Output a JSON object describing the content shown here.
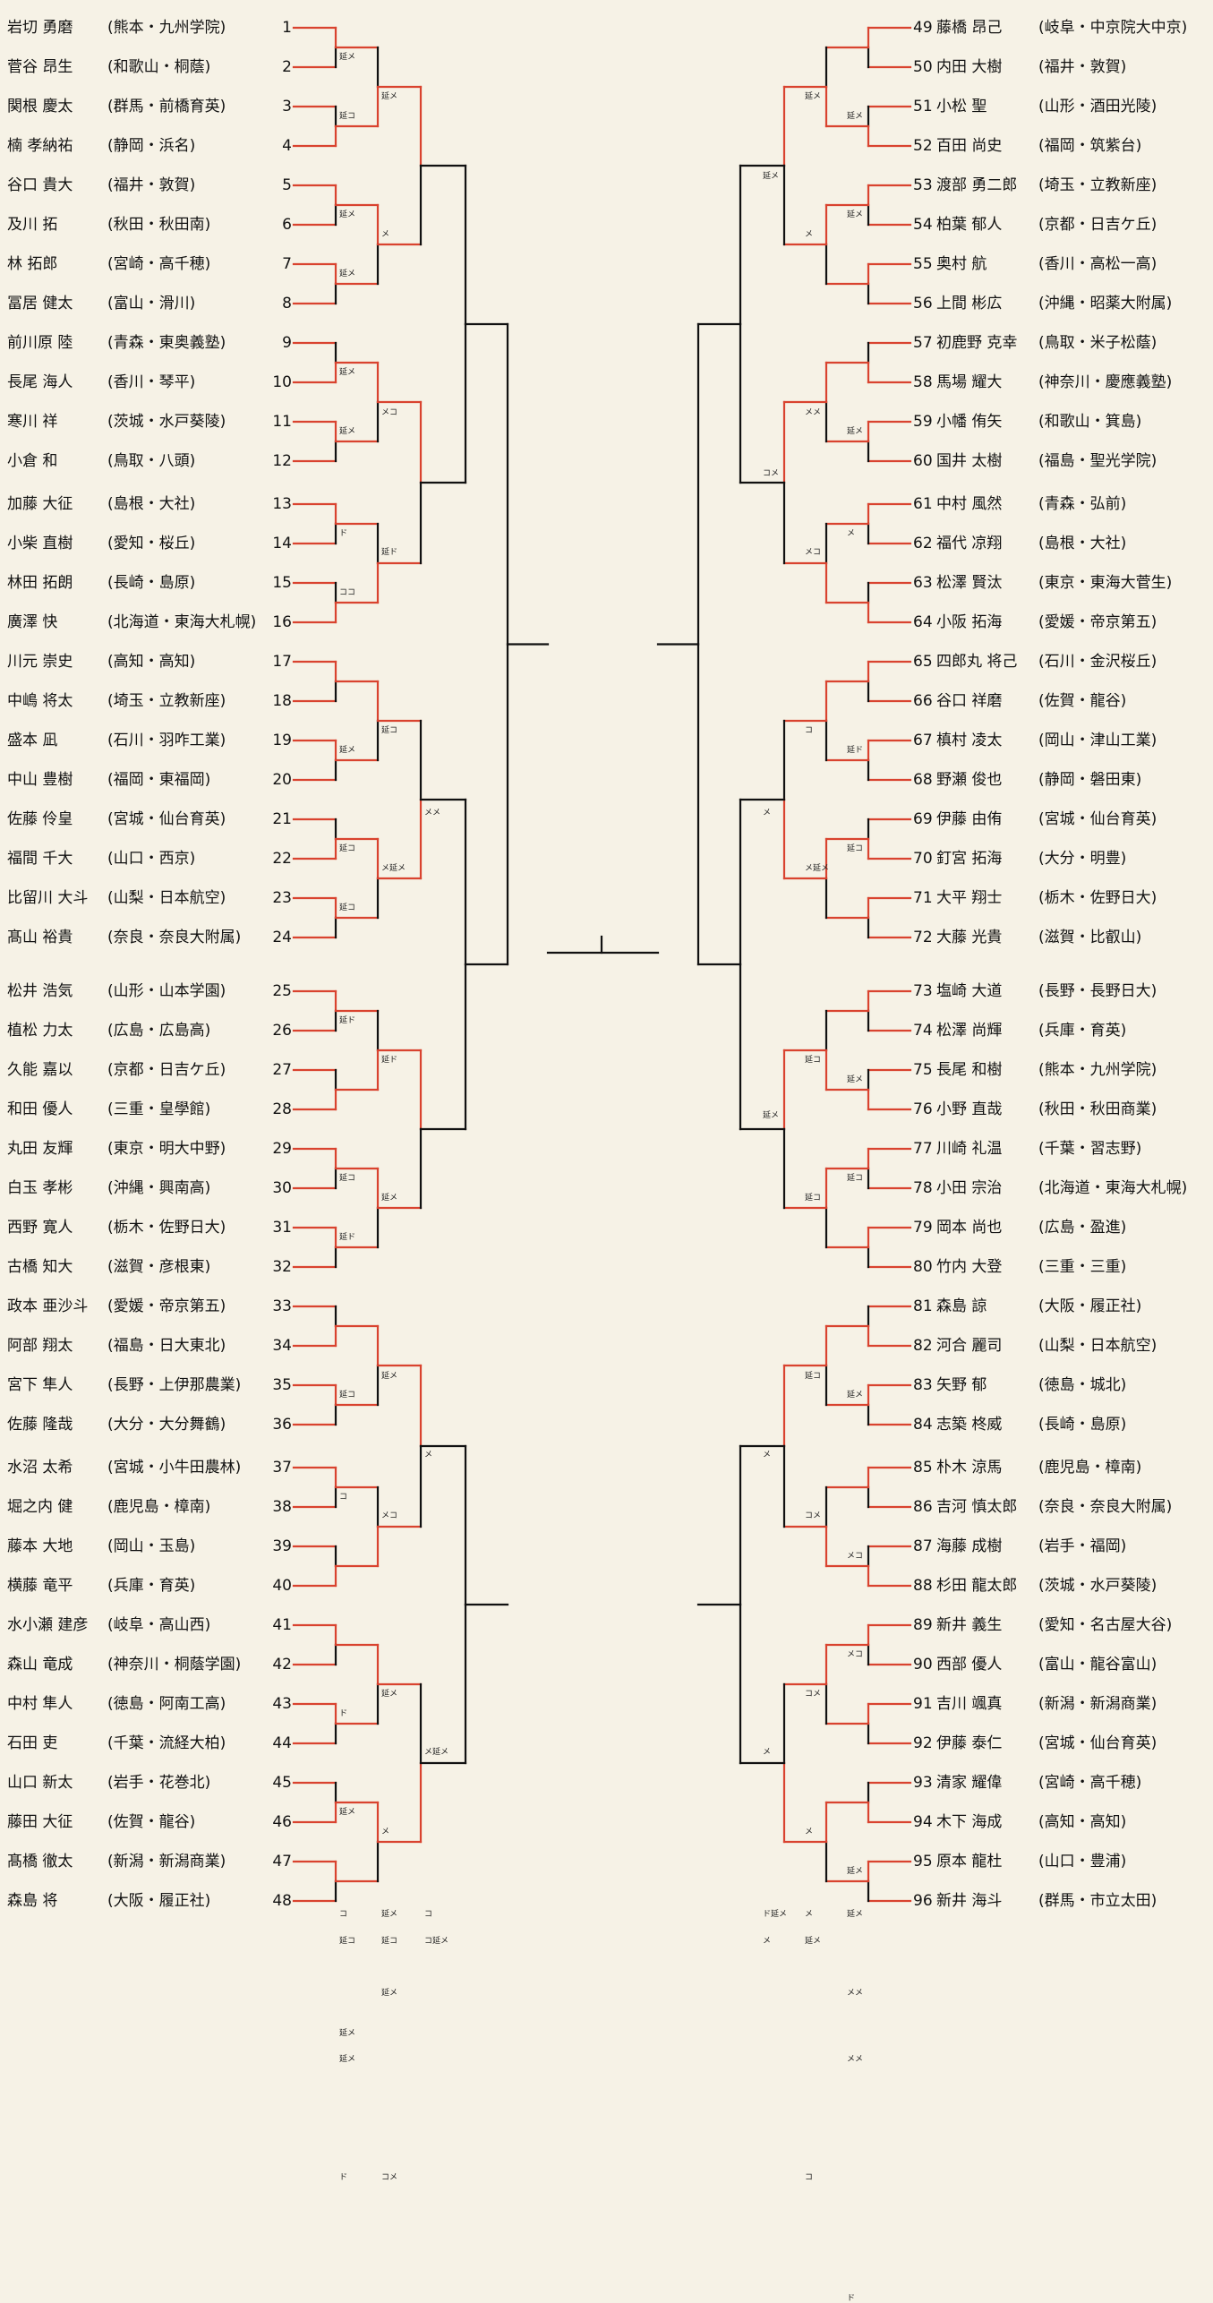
{
  "colors": {
    "win": "#d9432f",
    "line": "#111111",
    "background": "#f6f2e6"
  },
  "left": [
    {
      "seed": "1",
      "name": "岩切 勇磨",
      "school": "(熊本・九州学院)"
    },
    {
      "seed": "2",
      "name": "菅谷 昂生",
      "school": "(和歌山・桐蔭)"
    },
    {
      "seed": "3",
      "name": "関根 慶太",
      "school": "(群馬・前橋育英)"
    },
    {
      "seed": "4",
      "name": "楠 孝納祐",
      "school": "(静岡・浜名)"
    },
    {
      "seed": "5",
      "name": "谷口 貴大",
      "school": "(福井・敦賀)"
    },
    {
      "seed": "6",
      "name": "及川 拓",
      "school": "(秋田・秋田南)"
    },
    {
      "seed": "7",
      "name": "林 拓郎",
      "school": "(宮崎・高千穂)"
    },
    {
      "seed": "8",
      "name": "冨居 健太",
      "school": "(富山・滑川)"
    },
    {
      "seed": "9",
      "name": "前川原 陸",
      "school": "(青森・東奥義塾)"
    },
    {
      "seed": "10",
      "name": "長尾 海人",
      "school": "(香川・琴平)"
    },
    {
      "seed": "11",
      "name": "寒川 祥",
      "school": "(茨城・水戸葵陵)"
    },
    {
      "seed": "12",
      "name": "小倉 和",
      "school": "(鳥取・八頭)"
    },
    {
      "seed": "13",
      "name": "加藤 大征",
      "school": "(島根・大社)"
    },
    {
      "seed": "14",
      "name": "小柴 直樹",
      "school": "(愛知・桜丘)"
    },
    {
      "seed": "15",
      "name": "林田 拓朗",
      "school": "(長崎・島原)"
    },
    {
      "seed": "16",
      "name": "廣澤 快",
      "school": "(北海道・東海大札幌)"
    },
    {
      "seed": "17",
      "name": "川元 崇史",
      "school": "(高知・高知)"
    },
    {
      "seed": "18",
      "name": "中嶋 将太",
      "school": "(埼玉・立教新座)"
    },
    {
      "seed": "19",
      "name": "盛本 凪",
      "school": "(石川・羽咋工業)"
    },
    {
      "seed": "20",
      "name": "中山 豊樹",
      "school": "(福岡・東福岡)"
    },
    {
      "seed": "21",
      "name": "佐藤 伶皇",
      "school": "(宮城・仙台育英)"
    },
    {
      "seed": "22",
      "name": "福間 千大",
      "school": "(山口・西京)"
    },
    {
      "seed": "23",
      "name": "比留川 大斗",
      "school": "(山梨・日本航空)"
    },
    {
      "seed": "24",
      "name": "髙山 裕貴",
      "school": "(奈良・奈良大附属)"
    },
    {
      "seed": "25",
      "name": "松井 浩気",
      "school": "(山形・山本学園)"
    },
    {
      "seed": "26",
      "name": "植松 力太",
      "school": "(広島・広島高)"
    },
    {
      "seed": "27",
      "name": "久能 嘉以",
      "school": "(京都・日吉ケ丘)"
    },
    {
      "seed": "28",
      "name": "和田 優人",
      "school": "(三重・皇學館)"
    },
    {
      "seed": "29",
      "name": "丸田 友輝",
      "school": "(東京・明大中野)"
    },
    {
      "seed": "30",
      "name": "白玉 孝彬",
      "school": "(沖縄・興南高)"
    },
    {
      "seed": "31",
      "name": "西野 寛人",
      "school": "(栃木・佐野日大)"
    },
    {
      "seed": "32",
      "name": "古橋 知大",
      "school": "(滋賀・彦根東)"
    },
    {
      "seed": "33",
      "name": "政本 亜沙斗",
      "school": "(愛媛・帝京第五)"
    },
    {
      "seed": "34",
      "name": "阿部 翔太",
      "school": "(福島・日大東北)"
    },
    {
      "seed": "35",
      "name": "宮下 隼人",
      "school": "(長野・上伊那農業)"
    },
    {
      "seed": "36",
      "name": "佐藤 隆哉",
      "school": "(大分・大分舞鶴)"
    },
    {
      "seed": "37",
      "name": "水沼 太希",
      "school": "(宮城・小牛田農林)"
    },
    {
      "seed": "38",
      "name": "堀之内 健",
      "school": "(鹿児島・樟南)"
    },
    {
      "seed": "39",
      "name": "藤本 大地",
      "school": "(岡山・玉島)"
    },
    {
      "seed": "40",
      "name": "横藤 竜平",
      "school": "(兵庫・育英)"
    },
    {
      "seed": "41",
      "name": "水小瀬 建彦",
      "school": "(岐阜・高山西)"
    },
    {
      "seed": "42",
      "name": "森山 竜成",
      "school": "(神奈川・桐蔭学園)"
    },
    {
      "seed": "43",
      "name": "中村 隼人",
      "school": "(徳島・阿南工高)"
    },
    {
      "seed": "44",
      "name": "石田 吏",
      "school": "(千葉・流経大柏)"
    },
    {
      "seed": "45",
      "name": "山口 新太",
      "school": "(岩手・花巻北)"
    },
    {
      "seed": "46",
      "name": "藤田 大征",
      "school": "(佐賀・龍谷)"
    },
    {
      "seed": "47",
      "name": "髙橋 徹太",
      "school": "(新潟・新潟商業)"
    },
    {
      "seed": "48",
      "name": "森島 将",
      "school": "(大阪・履正社)"
    }
  ],
  "right": [
    {
      "seed": "49",
      "name": "藤橋 昂己",
      "school": "(岐阜・中京院大中京)"
    },
    {
      "seed": "50",
      "name": "内田 大樹",
      "school": "(福井・敦賀)"
    },
    {
      "seed": "51",
      "name": "小松 聖",
      "school": "(山形・酒田光陵)"
    },
    {
      "seed": "52",
      "name": "百田 尚史",
      "school": "(福岡・筑紫台)"
    },
    {
      "seed": "53",
      "name": "渡部 勇二郎",
      "school": "(埼玉・立教新座)"
    },
    {
      "seed": "54",
      "name": "柏葉 郁人",
      "school": "(京都・日吉ケ丘)"
    },
    {
      "seed": "55",
      "name": "奥村 航",
      "school": "(香川・高松一高)"
    },
    {
      "seed": "56",
      "name": "上間 彬広",
      "school": "(沖縄・昭薬大附属)"
    },
    {
      "seed": "57",
      "name": "初鹿野 克幸",
      "school": "(鳥取・米子松蔭)"
    },
    {
      "seed": "58",
      "name": "馬場 耀大",
      "school": "(神奈川・慶應義塾)"
    },
    {
      "seed": "59",
      "name": "小幡 侑矢",
      "school": "(和歌山・箕島)"
    },
    {
      "seed": "60",
      "name": "国井 太樹",
      "school": "(福島・聖光学院)"
    },
    {
      "seed": "61",
      "name": "中村 風然",
      "school": "(青森・弘前)"
    },
    {
      "seed": "62",
      "name": "福代 凉翔",
      "school": "(島根・大社)"
    },
    {
      "seed": "63",
      "name": "松澤 賢汰",
      "school": "(東京・東海大菅生)"
    },
    {
      "seed": "64",
      "name": "小阪 拓海",
      "school": "(愛媛・帝京第五)"
    },
    {
      "seed": "65",
      "name": "四郎丸 将己",
      "school": "(石川・金沢桜丘)"
    },
    {
      "seed": "66",
      "name": "谷口 祥磨",
      "school": "(佐賀・龍谷)"
    },
    {
      "seed": "67",
      "name": "槙村 凌太",
      "school": "(岡山・津山工業)"
    },
    {
      "seed": "68",
      "name": "野瀬 俊也",
      "school": "(静岡・磐田東)"
    },
    {
      "seed": "69",
      "name": "伊藤 由侑",
      "school": "(宮城・仙台育英)"
    },
    {
      "seed": "70",
      "name": "釘宮 拓海",
      "school": "(大分・明豊)"
    },
    {
      "seed": "71",
      "name": "大平 翔士",
      "school": "(栃木・佐野日大)"
    },
    {
      "seed": "72",
      "name": "大藤 光貴",
      "school": "(滋賀・比叡山)"
    },
    {
      "seed": "73",
      "name": "塩崎 大道",
      "school": "(長野・長野日大)"
    },
    {
      "seed": "74",
      "name": "松澤 尚輝",
      "school": "(兵庫・育英)"
    },
    {
      "seed": "75",
      "name": "長尾 和樹",
      "school": "(熊本・九州学院)"
    },
    {
      "seed": "76",
      "name": "小野 直哉",
      "school": "(秋田・秋田商業)"
    },
    {
      "seed": "77",
      "name": "川崎 礼温",
      "school": "(千葉・習志野)"
    },
    {
      "seed": "78",
      "name": "小田 宗治",
      "school": "(北海道・東海大札幌)"
    },
    {
      "seed": "79",
      "name": "岡本 尚也",
      "school": "(広島・盈進)"
    },
    {
      "seed": "80",
      "name": "竹内 大登",
      "school": "(三重・三重)"
    },
    {
      "seed": "81",
      "name": "森島 諒",
      "school": "(大阪・履正社)"
    },
    {
      "seed": "82",
      "name": "河合 麗司",
      "school": "(山梨・日本航空)"
    },
    {
      "seed": "83",
      "name": "矢野 郁",
      "school": "(徳島・城北)"
    },
    {
      "seed": "84",
      "name": "志築 柊威",
      "school": "(長崎・島原)"
    },
    {
      "seed": "85",
      "name": "朴木 涼馬",
      "school": "(鹿児島・樟南)"
    },
    {
      "seed": "86",
      "name": "吉河 慎太郎",
      "school": "(奈良・奈良大附属)"
    },
    {
      "seed": "87",
      "name": "海藤 成樹",
      "school": "(岩手・福岡)"
    },
    {
      "seed": "88",
      "name": "杉田 龍太郎",
      "school": "(茨城・水戸葵陵)"
    },
    {
      "seed": "89",
      "name": "新井 義生",
      "school": "(愛知・名古屋大谷)"
    },
    {
      "seed": "90",
      "name": "西部 優人",
      "school": "(富山・龍谷富山)"
    },
    {
      "seed": "91",
      "name": "吉川 颯真",
      "school": "(新潟・新潟商業)"
    },
    {
      "seed": "92",
      "name": "伊藤 泰仁",
      "school": "(宮城・仙台育英)"
    },
    {
      "seed": "93",
      "name": "清家 耀偉",
      "school": "(宮崎・高千穂)"
    },
    {
      "seed": "94",
      "name": "木下 海成",
      "school": "(高知・高知)"
    },
    {
      "seed": "95",
      "name": "原本 龍杜",
      "school": "(山口・豊浦)"
    },
    {
      "seed": "96",
      "name": "新井 海斗",
      "school": "(群馬・市立太田)"
    }
  ],
  "left_tags": [
    {
      "round": 1,
      "match": 0,
      "pos": "top",
      "text": "延メ"
    },
    {
      "round": 1,
      "match": 0,
      "pos": "bot",
      "text": "延コ"
    },
    {
      "round": 1,
      "match": 1,
      "pos": "top",
      "text": "延メ"
    },
    {
      "round": 1,
      "match": 1,
      "pos": "bot",
      "text": "延メ"
    },
    {
      "round": 1,
      "match": 2,
      "pos": "top",
      "text": "延メ"
    },
    {
      "round": 1,
      "match": 2,
      "pos": "bot",
      "text": "延メ"
    },
    {
      "round": 1,
      "match": 3,
      "pos": "top",
      "text": "ド"
    },
    {
      "round": 1,
      "match": 3,
      "pos": "bot",
      "text": "ココ"
    },
    {
      "round": 1,
      "match": 4,
      "pos": "bot",
      "text": "延メ"
    },
    {
      "round": 1,
      "match": 5,
      "pos": "top",
      "text": "延コ"
    },
    {
      "round": 1,
      "match": 5,
      "pos": "bot",
      "text": "延コ"
    },
    {
      "round": 1,
      "match": 6,
      "pos": "top",
      "text": "延ド"
    },
    {
      "round": 1,
      "match": 7,
      "pos": "top",
      "text": "延コ"
    },
    {
      "round": 1,
      "match": 7,
      "pos": "bot",
      "text": "延ド"
    },
    {
      "round": 1,
      "match": 8,
      "pos": "bot",
      "text": "延コ"
    },
    {
      "round": 1,
      "match": 9,
      "pos": "top",
      "text": "コ"
    },
    {
      "round": 1,
      "match": 10,
      "pos": "bot",
      "text": "ド"
    },
    {
      "round": 1,
      "match": 11,
      "pos": "top",
      "text": "延メ"
    },
    {
      "round": 1,
      "match": 12,
      "pos": "top",
      "text": "延コ"
    },
    {
      "round": 1,
      "match": 12,
      "pos": "bot",
      "text": "コ"
    },
    {
      "round": 1,
      "match": 13,
      "pos": "top",
      "text": "延メ"
    },
    {
      "round": 1,
      "match": 14,
      "pos": "top",
      "text": "ド"
    },
    {
      "round": 1,
      "match": 15,
      "pos": "bot",
      "text": "延メ"
    },
    {
      "round": 2,
      "match": 0,
      "pos": "top",
      "text": "延メ"
    },
    {
      "round": 2,
      "match": 0,
      "pos": "bot",
      "text": "メ"
    },
    {
      "round": 2,
      "match": 1,
      "pos": "top",
      "text": "メコ"
    },
    {
      "round": 2,
      "match": 1,
      "pos": "bot",
      "text": "延ド"
    },
    {
      "round": 2,
      "match": 2,
      "pos": "top",
      "text": "延コ"
    },
    {
      "round": 2,
      "match": 2,
      "pos": "bot",
      "text": "メ延メ"
    },
    {
      "round": 2,
      "match": 3,
      "pos": "top",
      "text": "延ド"
    },
    {
      "round": 2,
      "match": 3,
      "pos": "bot",
      "text": "延メ"
    },
    {
      "round": 2,
      "match": 4,
      "pos": "top",
      "text": "延メ"
    },
    {
      "round": 2,
      "match": 4,
      "pos": "bot",
      "text": "メコ"
    },
    {
      "round": 2,
      "match": 5,
      "pos": "top",
      "text": "延メ"
    },
    {
      "round": 2,
      "match": 5,
      "pos": "bot",
      "text": "メ"
    },
    {
      "round": 2,
      "match": 6,
      "pos": "top",
      "text": "延コ"
    },
    {
      "round": 2,
      "match": 6,
      "pos": "bot",
      "text": "延メ"
    },
    {
      "round": 2,
      "match": 7,
      "pos": "top",
      "text": "コメ"
    },
    {
      "round": 2,
      "match": 7,
      "pos": "bot",
      "text": "延メ"
    },
    {
      "round": 3,
      "match": 1,
      "pos": "top",
      "text": "メメ"
    },
    {
      "round": 3,
      "match": 2,
      "pos": "top",
      "text": "メ"
    },
    {
      "round": 3,
      "match": 2,
      "pos": "bot",
      "text": "メ延メ"
    },
    {
      "round": 3,
      "match": 3,
      "pos": "top",
      "text": "コ延メ"
    },
    {
      "round": 3,
      "match": 3,
      "pos": "bot",
      "text": "コ"
    }
  ],
  "right_tags": [
    {
      "round": 1,
      "match": 0,
      "pos": "bot",
      "text": "延メ"
    },
    {
      "round": 1,
      "match": 1,
      "pos": "top",
      "text": "延メ"
    },
    {
      "round": 1,
      "match": 2,
      "pos": "bot",
      "text": "延メ"
    },
    {
      "round": 1,
      "match": 3,
      "pos": "top",
      "text": "メ"
    },
    {
      "round": 1,
      "match": 4,
      "pos": "bot",
      "text": "延ド"
    },
    {
      "round": 1,
      "match": 5,
      "pos": "top",
      "text": "延コ"
    },
    {
      "round": 1,
      "match": 6,
      "pos": "bot",
      "text": "延メ"
    },
    {
      "round": 1,
      "match": 7,
      "pos": "top",
      "text": "延コ"
    },
    {
      "round": 1,
      "match": 8,
      "pos": "bot",
      "text": "延メ"
    },
    {
      "round": 1,
      "match": 9,
      "pos": "bot",
      "text": "メコ"
    },
    {
      "round": 1,
      "match": 10,
      "pos": "top",
      "text": "メコ"
    },
    {
      "round": 1,
      "match": 11,
      "pos": "bot",
      "text": "延メ"
    },
    {
      "round": 1,
      "match": 12,
      "pos": "bot",
      "text": "延メ"
    },
    {
      "round": 1,
      "match": 13,
      "pos": "top",
      "text": "メメ"
    },
    {
      "round": 1,
      "match": 14,
      "pos": "bot",
      "text": "メメ"
    },
    {
      "round": 1,
      "match": 15,
      "pos": "top",
      "text": "ド"
    },
    {
      "round": 2,
      "match": 0,
      "pos": "top",
      "text": "延メ"
    },
    {
      "round": 2,
      "match": 0,
      "pos": "bot",
      "text": "メ"
    },
    {
      "round": 2,
      "match": 1,
      "pos": "top",
      "text": "メメ"
    },
    {
      "round": 2,
      "match": 1,
      "pos": "bot",
      "text": "メコ"
    },
    {
      "round": 2,
      "match": 2,
      "pos": "top",
      "text": "コ"
    },
    {
      "round": 2,
      "match": 2,
      "pos": "bot",
      "text": "メ延メ"
    },
    {
      "round": 2,
      "match": 3,
      "pos": "top",
      "text": "延コ"
    },
    {
      "round": 2,
      "match": 3,
      "pos": "bot",
      "text": "延コ"
    },
    {
      "round": 2,
      "match": 4,
      "pos": "top",
      "text": "延コ"
    },
    {
      "round": 2,
      "match": 4,
      "pos": "bot",
      "text": "コメ"
    },
    {
      "round": 2,
      "match": 5,
      "pos": "top",
      "text": "コメ"
    },
    {
      "round": 2,
      "match": 5,
      "pos": "bot",
      "text": "メ"
    },
    {
      "round": 2,
      "match": 6,
      "pos": "top",
      "text": "延メ"
    },
    {
      "round": 2,
      "match": 6,
      "pos": "bot",
      "text": "メ"
    },
    {
      "round": 2,
      "match": 7,
      "pos": "top",
      "text": "コ"
    },
    {
      "round": 3,
      "match": 0,
      "pos": "top",
      "text": "延メ"
    },
    {
      "round": 3,
      "match": 0,
      "pos": "bot",
      "text": "コメ"
    },
    {
      "round": 3,
      "match": 1,
      "pos": "top",
      "text": "メ"
    },
    {
      "round": 3,
      "match": 1,
      "pos": "bot",
      "text": "延メ"
    },
    {
      "round": 3,
      "match": 2,
      "pos": "top",
      "text": "メ"
    },
    {
      "round": 3,
      "match": 2,
      "pos": "bot",
      "text": "メ"
    },
    {
      "round": 3,
      "match": 3,
      "pos": "top",
      "text": "メ"
    },
    {
      "round": 3,
      "match": 3,
      "pos": "bot",
      "text": "ド延メ"
    }
  ]
}
